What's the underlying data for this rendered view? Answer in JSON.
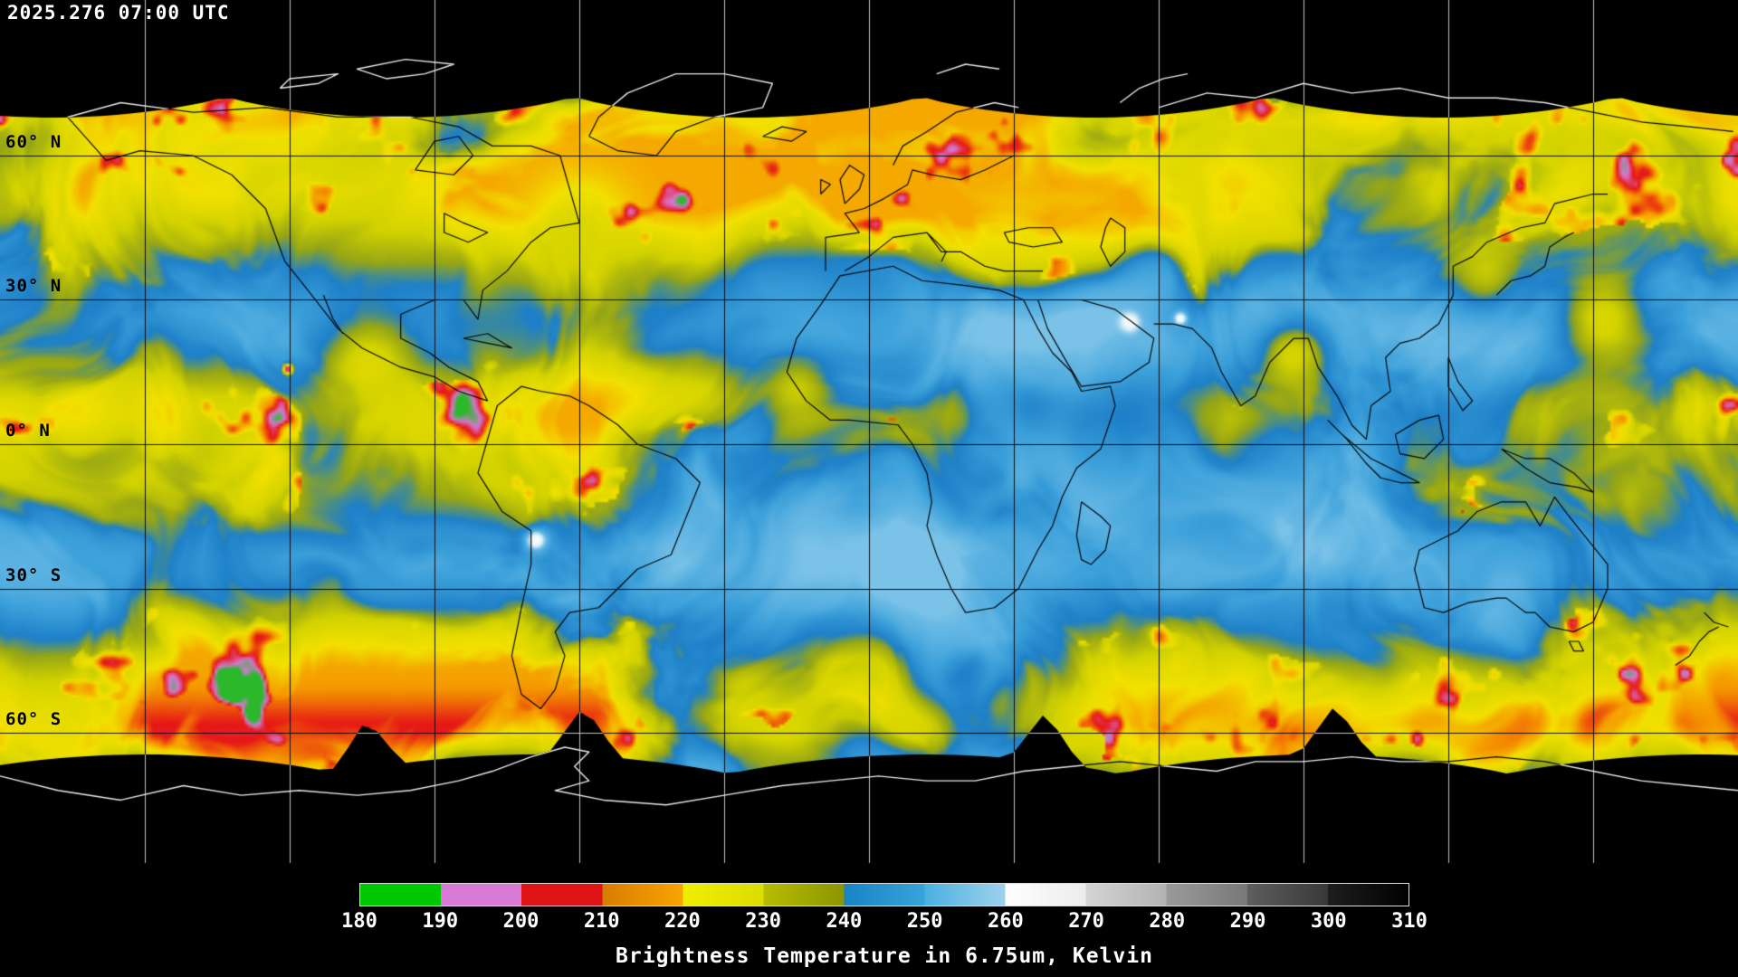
{
  "header": {
    "timestamp": "2025.276 07:00 UTC"
  },
  "map": {
    "lat_labels": [
      {
        "label": "60° N",
        "lat": 60
      },
      {
        "label": "30° N",
        "lat": 30
      },
      {
        "label": "0° N",
        "lat": 0
      },
      {
        "label": "30° S",
        "lat": -30
      },
      {
        "label": "60° S",
        "lat": -60
      }
    ],
    "grid_lon_step_deg": 30,
    "grid_lat_step_deg": 30,
    "palette": [
      [
        180,
        0,
        200,
        0
      ],
      [
        190,
        214,
        122,
        214
      ],
      [
        200,
        230,
        22,
        22
      ],
      [
        210,
        245,
        152,
        0
      ],
      [
        219,
        242,
        225,
        0
      ],
      [
        229,
        210,
        210,
        0
      ],
      [
        236,
        150,
        166,
        22
      ],
      [
        241,
        30,
        128,
        200
      ],
      [
        249,
        60,
        160,
        218
      ],
      [
        257,
        105,
        186,
        229
      ],
      [
        263,
        215,
        236,
        246
      ],
      [
        270,
        255,
        255,
        255
      ],
      [
        280,
        190,
        190,
        190
      ],
      [
        290,
        140,
        140,
        140
      ],
      [
        300,
        82,
        82,
        82
      ],
      [
        310,
        0,
        0,
        0
      ]
    ]
  },
  "colorbar": {
    "caption": "Brightness Temperature in 6.75um, Kelvin",
    "units": "Kelvin",
    "range": [
      180,
      310
    ],
    "ticks": [
      "180",
      "190",
      "200",
      "210",
      "220",
      "230",
      "240",
      "250",
      "260",
      "270",
      "280",
      "290",
      "300",
      "310"
    ],
    "segments": [
      [
        "#00c800",
        "#00c800"
      ],
      [
        "#d67ad6",
        "#d67ad6"
      ],
      [
        "#e01414",
        "#e01414"
      ],
      [
        "#d87c00",
        "#f8a400"
      ],
      [
        "#f0ee00",
        "#dcdc00"
      ],
      [
        "#b8bc00",
        "#8a9600"
      ],
      [
        "#1884c4",
        "#38a2da"
      ],
      [
        "#4ab0e0",
        "#9ed2ec"
      ],
      [
        "#ffffff",
        "#ececec"
      ],
      [
        "#d4d4d4",
        "#b2b2b2"
      ],
      [
        "#9a9a9a",
        "#787878"
      ],
      [
        "#5e5e5e",
        "#383838"
      ],
      [
        "#1e1e1e",
        "#000000"
      ]
    ]
  }
}
